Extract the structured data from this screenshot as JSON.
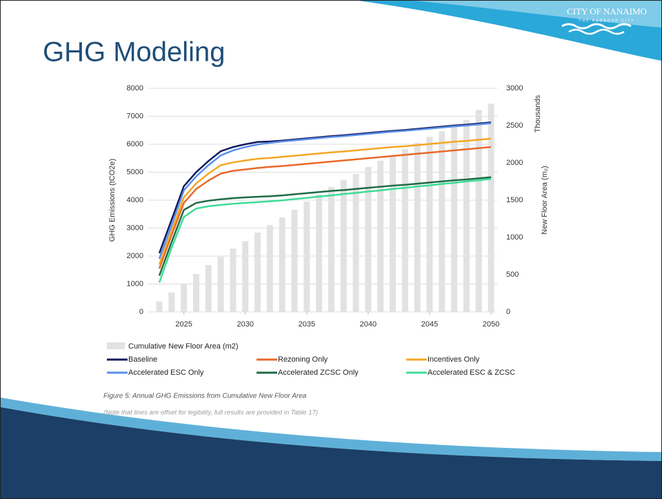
{
  "slide": {
    "title": "GHG Modeling",
    "logo": "CITY OF NANAIMO",
    "logo_tagline": "THE HARBOUR CITY",
    "caption": "Figure 5: Annual GHG Emissions from Cumulative New Floor Area",
    "note": "(Note that lines are offset for legibility, full results are provided in Table 17)"
  },
  "chart_data": {
    "type": "line",
    "y_label": "GHG Emissions (tCO2e)",
    "y2_label": "New Floor Area (m₂)",
    "y2_unit": "Thousands",
    "x": [
      2023,
      2024,
      2025,
      2026,
      2027,
      2028,
      2029,
      2030,
      2031,
      2032,
      2033,
      2034,
      2035,
      2036,
      2037,
      2038,
      2039,
      2040,
      2041,
      2042,
      2043,
      2044,
      2045,
      2046,
      2047,
      2048,
      2049,
      2050
    ],
    "xlim": [
      2022.1,
      2050.5
    ],
    "xticks": [
      2025,
      2030,
      2035,
      2040,
      2045,
      2050
    ],
    "ylim": [
      0,
      8000
    ],
    "yticks": [
      0,
      1000,
      2000,
      3000,
      4000,
      5000,
      6000,
      7000,
      8000
    ],
    "y2lim": [
      0,
      3000
    ],
    "y2ticks": [
      0,
      500,
      1000,
      1500,
      2000,
      2500,
      3000
    ],
    "grid": true,
    "series": [
      {
        "name": "Cumulative New Floor Area (m2)",
        "type": "bar",
        "axis": "y2",
        "color": "#e2e2e2",
        "values": [
          140,
          260,
          380,
          510,
          630,
          740,
          850,
          950,
          1065,
          1165,
          1270,
          1370,
          1480,
          1575,
          1675,
          1770,
          1850,
          1945,
          2030,
          2100,
          2185,
          2270,
          2350,
          2425,
          2500,
          2575,
          2710,
          2795
        ]
      },
      {
        "name": "Baseline",
        "type": "line",
        "color": "#101a5e",
        "values": [
          2100,
          3300,
          4500,
          5000,
          5400,
          5750,
          5900,
          6000,
          6080,
          6100,
          6130,
          6170,
          6210,
          6250,
          6290,
          6320,
          6360,
          6400,
          6440,
          6480,
          6510,
          6550,
          6590,
          6630,
          6670,
          6700,
          6740,
          6780
        ]
      },
      {
        "name": "Rezoning Only",
        "type": "line",
        "color": "#e8692a",
        "values": [
          1550,
          2750,
          3900,
          4400,
          4700,
          4950,
          5050,
          5100,
          5150,
          5190,
          5220,
          5260,
          5300,
          5340,
          5380,
          5420,
          5460,
          5500,
          5540,
          5580,
          5620,
          5660,
          5700,
          5740,
          5780,
          5820,
          5860,
          5900
        ]
      },
      {
        "name": "Incentives Only",
        "type": "line",
        "color": "#f5a623",
        "values": [
          1700,
          2900,
          4100,
          4600,
          4950,
          5250,
          5350,
          5420,
          5480,
          5510,
          5550,
          5590,
          5630,
          5670,
          5710,
          5740,
          5780,
          5820,
          5860,
          5900,
          5930,
          5970,
          6010,
          6050,
          6090,
          6120,
          6160,
          6200
        ]
      },
      {
        "name": "Accelerated ESC Only",
        "type": "line",
        "color": "#5b8fe8",
        "values": [
          1900,
          3100,
          4350,
          4850,
          5250,
          5600,
          5780,
          5900,
          5990,
          6050,
          6100,
          6140,
          6180,
          6220,
          6260,
          6290,
          6330,
          6370,
          6410,
          6450,
          6480,
          6520,
          6560,
          6600,
          6640,
          6670,
          6710,
          6750
        ]
      },
      {
        "name": "Accelerated ZCSC Only",
        "type": "line",
        "color": "#1e6b45",
        "values": [
          1300,
          2500,
          3650,
          3900,
          3980,
          4030,
          4070,
          4100,
          4120,
          4140,
          4170,
          4210,
          4250,
          4290,
          4330,
          4360,
          4400,
          4440,
          4480,
          4520,
          4550,
          4590,
          4630,
          4670,
          4710,
          4740,
          4780,
          4820
        ]
      },
      {
        "name": "Accelerated ESC & ZCSC",
        "type": "line",
        "color": "#3ddc97",
        "values": [
          1050,
          2300,
          3400,
          3700,
          3780,
          3830,
          3870,
          3900,
          3930,
          3960,
          3990,
          4040,
          4080,
          4130,
          4170,
          4220,
          4260,
          4310,
          4350,
          4400,
          4440,
          4490,
          4530,
          4580,
          4620,
          4670,
          4710,
          4760
        ]
      }
    ]
  }
}
